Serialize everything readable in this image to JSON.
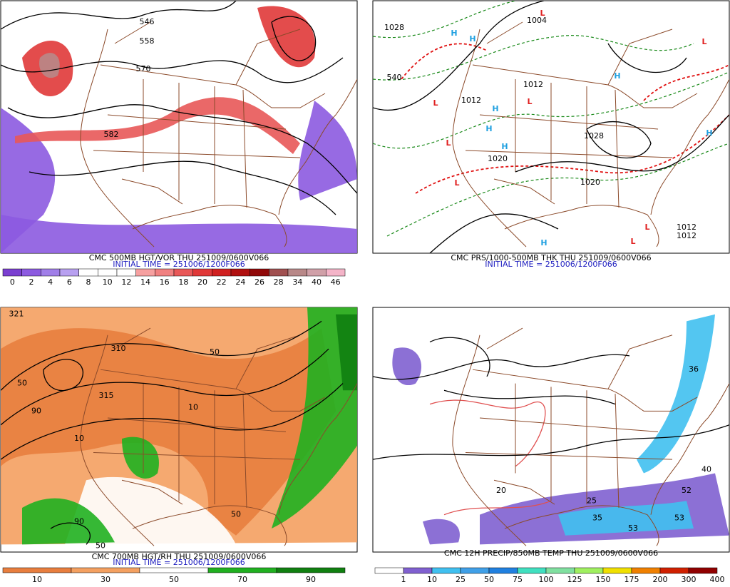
{
  "panels": [
    {
      "title": "CMC 500MB HGT/VOR THU 251009/0600V066",
      "initial_time": "INITIAL TIME = 251006/1200F066",
      "colorbar": [
        "0",
        "2",
        "4",
        "6",
        "8",
        "10",
        "12",
        "14",
        "16",
        "18",
        "20",
        "22",
        "24",
        "26",
        "28",
        "34",
        "40",
        "46"
      ],
      "map_labels": [
        "558",
        "570",
        "582",
        "546"
      ]
    },
    {
      "title": "CMC PRS/1000-500MB THK THU 251009/0600V066",
      "initial_time": "INITIAL TIME = 251006/1200F066",
      "map_labels": [
        "1028",
        "1004",
        "1012",
        "1012",
        "1020",
        "1028",
        "1020",
        "1012",
        "1012",
        "540",
        "H",
        "H",
        "H",
        "H",
        "H",
        "H",
        "H",
        "H",
        "L",
        "L",
        "L",
        "L",
        "L",
        "L",
        "L",
        "L"
      ]
    },
    {
      "title": "CMC 700MB HGT/RH THU 251009/0600V066",
      "initial_time": "INITIAL TIME = 251006/1200F066",
      "colorbar": [
        "10",
        "30",
        "50",
        "70",
        "90"
      ],
      "map_labels": [
        "321",
        "315",
        "310",
        "50",
        "50",
        "50",
        "50",
        "90",
        "90",
        "10",
        "10"
      ]
    },
    {
      "title": "CMC 12H PRECIP/850MB TEMP THU 251009/0600V066",
      "colorbar": [
        "1",
        "10",
        "25",
        "50",
        "75",
        "100",
        "125",
        "150",
        "175",
        "200",
        "300",
        "400"
      ],
      "map_labels": [
        "20",
        "25",
        "36",
        "40",
        "52",
        "35",
        "53",
        "53"
      ]
    }
  ]
}
